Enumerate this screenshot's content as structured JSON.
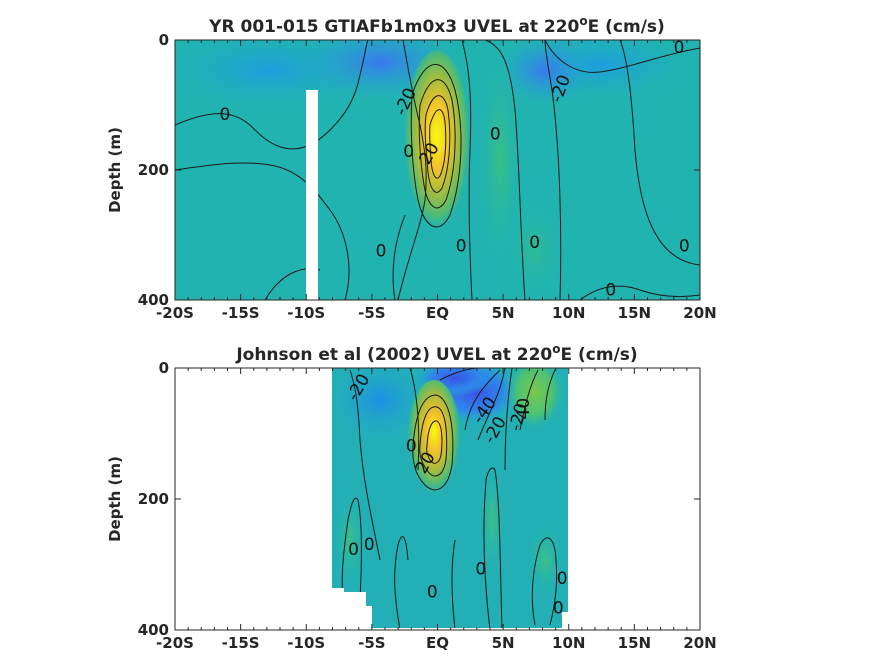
{
  "chart_data": [
    {
      "type": "heatmap",
      "title_main": "YR 001-015 GTIAFb1m0x3 UVEL at 220",
      "title_sup": "o",
      "title_tail": "E (cm/s)",
      "ylabel": "Depth (m)",
      "xlim": [
        -20,
        20
      ],
      "ylim": [
        0,
        400
      ],
      "y_reversed": true,
      "xticks": [
        {
          "v": -20,
          "label": "-20S"
        },
        {
          "v": -15,
          "label": "-15S"
        },
        {
          "v": -10,
          "label": "-10S"
        },
        {
          "v": -5,
          "label": "-5S"
        },
        {
          "v": 0,
          "label": "EQ"
        },
        {
          "v": 5,
          "label": "5N"
        },
        {
          "v": 10,
          "label": "10N"
        },
        {
          "v": 15,
          "label": "15N"
        },
        {
          "v": 20,
          "label": "20N"
        }
      ],
      "yticks": [
        0,
        200,
        400
      ],
      "contour_labels": [
        {
          "text": "0",
          "x": -16.2,
          "y": 115,
          "rot": 0
        },
        {
          "text": "-20",
          "x": -2.4,
          "y": 95,
          "rot": -65
        },
        {
          "text": "-20",
          "x": 9.4,
          "y": 75,
          "rot": -70
        },
        {
          "text": "0",
          "x": 18.4,
          "y": 12,
          "rot": 0
        },
        {
          "text": "0",
          "x": 4.4,
          "y": 145,
          "rot": 0
        },
        {
          "text": "0",
          "x": -4.3,
          "y": 325,
          "rot": 0
        },
        {
          "text": "0",
          "x": 1.8,
          "y": 318,
          "rot": 0
        },
        {
          "text": "0",
          "x": 7.4,
          "y": 312,
          "rot": 0
        },
        {
          "text": "0",
          "x": 18.8,
          "y": 318,
          "rot": 0
        },
        {
          "text": "0",
          "x": 13.2,
          "y": 385,
          "rot": 0
        },
        {
          "text": "0",
          "x": -2.2,
          "y": 172,
          "rot": 0
        },
        {
          "text": "20",
          "x": -0.6,
          "y": 175,
          "rot": -60
        }
      ]
    },
    {
      "type": "heatmap",
      "title_main": "Johnson et al (2002) UVEL at 220",
      "title_sup": "o",
      "title_tail": "E (cm/s)",
      "ylabel": "Depth (m)",
      "xlim": [
        -20,
        20
      ],
      "ylim": [
        0,
        400
      ],
      "y_reversed": true,
      "xticks": [
        {
          "v": -20,
          "label": "-20S"
        },
        {
          "v": -15,
          "label": "-15S"
        },
        {
          "v": -10,
          "label": "-10S"
        },
        {
          "v": -5,
          "label": "-5S"
        },
        {
          "v": 0,
          "label": "EQ"
        },
        {
          "v": 5,
          "label": "5N"
        },
        {
          "v": 10,
          "label": "10N"
        },
        {
          "v": 15,
          "label": "15N"
        },
        {
          "v": 20,
          "label": "20N"
        }
      ],
      "yticks": [
        0,
        200,
        400
      ],
      "contour_labels": [
        {
          "text": "-20",
          "x": -6.0,
          "y": 30,
          "rot": -60
        },
        {
          "text": "-40",
          "x": 3.6,
          "y": 65,
          "rot": -55
        },
        {
          "text": "-20",
          "x": 4.4,
          "y": 95,
          "rot": -60
        },
        {
          "text": "-20",
          "x": 6.2,
          "y": 75,
          "rot": -75
        },
        {
          "text": "40",
          "x": 6.6,
          "y": 62,
          "rot": -90
        },
        {
          "text": "0",
          "x": -2.0,
          "y": 120,
          "rot": 0
        },
        {
          "text": "20",
          "x": -0.9,
          "y": 145,
          "rot": -60
        },
        {
          "text": "0",
          "x": -6.4,
          "y": 278,
          "rot": 0
        },
        {
          "text": "0",
          "x": -5.2,
          "y": 270,
          "rot": 0
        },
        {
          "text": "0",
          "x": 3.3,
          "y": 308,
          "rot": 0
        },
        {
          "text": "0",
          "x": -0.4,
          "y": 343,
          "rot": 0
        },
        {
          "text": "0",
          "x": 9.5,
          "y": 322,
          "rot": 0
        },
        {
          "text": "0",
          "x": 9.2,
          "y": 367,
          "rot": 0
        }
      ]
    }
  ]
}
